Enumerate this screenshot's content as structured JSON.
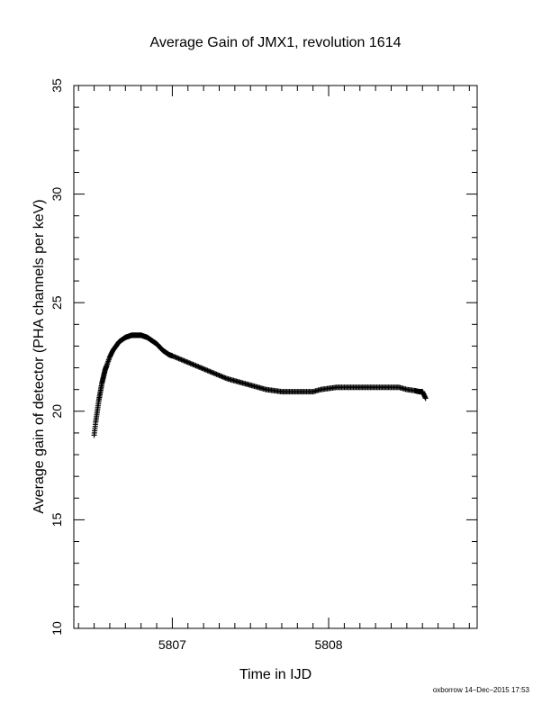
{
  "chart_data": {
    "type": "scatter",
    "title": "Average Gain of JMX1, revolution 1614",
    "xlabel": "Time in IJD",
    "ylabel": "Average gain of detector (PHA channels per keV)",
    "xlim": [
      5806.37,
      5808.95
    ],
    "ylim": [
      10,
      35
    ],
    "x_ticks": [
      5807,
      5808
    ],
    "y_ticks": [
      10,
      15,
      20,
      25,
      30,
      35
    ],
    "x_minor_step": 0.1,
    "y_minor_step": 1,
    "marker": "+",
    "color": "#000000",
    "series": [
      {
        "x": [
          5806.5,
          5806.51,
          5806.52,
          5806.53,
          5806.54,
          5806.55,
          5806.56,
          5806.57,
          5806.58,
          5806.6,
          5806.62,
          5806.64,
          5806.66,
          5806.68,
          5806.7,
          5806.72,
          5806.74,
          5806.76,
          5806.78,
          5806.8,
          5806.82,
          5806.84,
          5806.86,
          5806.88,
          5806.9,
          5806.92,
          5806.94,
          5806.96,
          5806.98,
          5807.0,
          5807.05,
          5807.1,
          5807.15,
          5807.2,
          5807.25,
          5807.3,
          5807.35,
          5807.4,
          5807.45,
          5807.5,
          5807.55,
          5807.6,
          5807.65,
          5807.7,
          5807.75,
          5807.8,
          5807.85,
          5807.9,
          5807.95,
          5808.0,
          5808.05,
          5808.1,
          5808.15,
          5808.2,
          5808.25,
          5808.3,
          5808.35,
          5808.4,
          5808.45,
          5808.5,
          5808.55,
          5808.58,
          5808.6,
          5808.62
        ],
        "y": [
          18.9,
          19.5,
          20.0,
          20.5,
          20.9,
          21.3,
          21.6,
          21.9,
          22.1,
          22.5,
          22.8,
          23.0,
          23.2,
          23.3,
          23.4,
          23.45,
          23.5,
          23.5,
          23.5,
          23.5,
          23.45,
          23.4,
          23.3,
          23.2,
          23.1,
          22.95,
          22.8,
          22.7,
          22.6,
          22.55,
          22.4,
          22.25,
          22.1,
          21.95,
          21.8,
          21.65,
          21.5,
          21.4,
          21.3,
          21.2,
          21.1,
          21.0,
          20.95,
          20.9,
          20.9,
          20.9,
          20.9,
          20.9,
          21.0,
          21.05,
          21.1,
          21.1,
          21.1,
          21.1,
          21.1,
          21.1,
          21.1,
          21.1,
          21.1,
          21.0,
          20.95,
          20.9,
          20.9,
          20.6
        ]
      }
    ]
  },
  "footer": {
    "credit": "oxborrow 14–Dec–2015 17:53"
  }
}
